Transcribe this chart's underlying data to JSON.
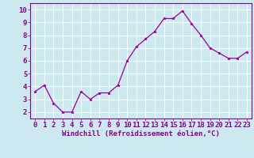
{
  "x": [
    0,
    1,
    2,
    3,
    4,
    5,
    6,
    7,
    8,
    9,
    10,
    11,
    12,
    13,
    14,
    15,
    16,
    17,
    18,
    19,
    20,
    21,
    22,
    23
  ],
  "y": [
    3.6,
    4.1,
    2.7,
    2.0,
    2.0,
    3.6,
    3.0,
    3.5,
    3.5,
    4.1,
    6.0,
    7.1,
    7.7,
    8.3,
    9.3,
    9.3,
    9.9,
    8.9,
    8.0,
    7.0,
    6.6,
    6.2,
    6.2,
    6.7
  ],
  "line_color": "#990099",
  "marker": "*",
  "marker_color": "#990099",
  "xlabel": "Windchill (Refroidissement éolien,°C)",
  "xlim": [
    -0.5,
    23.5
  ],
  "ylim": [
    1.5,
    10.5
  ],
  "yticks": [
    2,
    3,
    4,
    5,
    6,
    7,
    8,
    9,
    10
  ],
  "xticks": [
    0,
    1,
    2,
    3,
    4,
    5,
    6,
    7,
    8,
    9,
    10,
    11,
    12,
    13,
    14,
    15,
    16,
    17,
    18,
    19,
    20,
    21,
    22,
    23
  ],
  "background_color": "#cce9f0",
  "grid_color": "#ffffff",
  "tick_label_color": "#880088",
  "xlabel_color": "#880088",
  "xlabel_fontsize": 6.5,
  "tick_fontsize": 6.5,
  "line_width": 0.9,
  "marker_size": 2.5
}
